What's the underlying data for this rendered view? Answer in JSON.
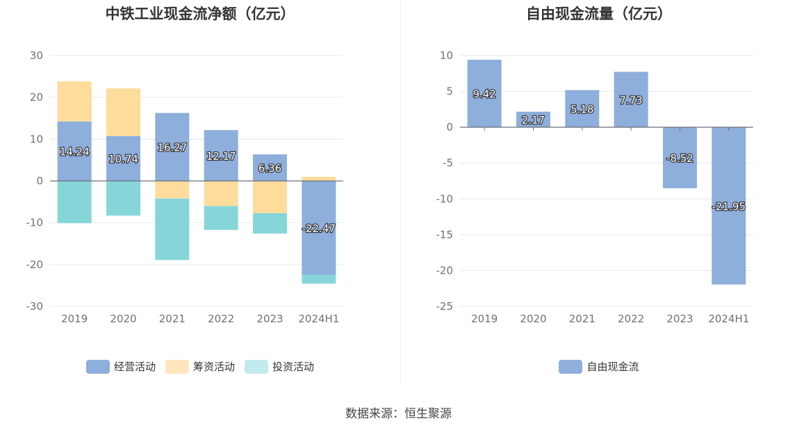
{
  "chart_data": [
    {
      "type": "bar",
      "stacked": true,
      "title": "中铁工业现金流净额（亿元）",
      "categories": [
        "2019",
        "2020",
        "2021",
        "2022",
        "2023",
        "2024H1"
      ],
      "ylim": [
        -30,
        30
      ],
      "yticks": [
        -30,
        -20,
        -10,
        0,
        10,
        20,
        30
      ],
      "grid": true,
      "legend_position": "bottom",
      "series": [
        {
          "name": "经营活动",
          "values": [
            14.24,
            10.74,
            16.27,
            12.17,
            6.36,
            -22.47
          ],
          "color": "#8eaedc",
          "labels": [
            "14.24",
            "10.74",
            "16.27",
            "12.17",
            "6.36",
            "-22.47"
          ]
        },
        {
          "name": "筹资活动",
          "values": [
            9.6,
            11.4,
            -4.2,
            -6.0,
            -7.7,
            1.0
          ],
          "color": "#ffdc9c"
        },
        {
          "name": "投资活动",
          "values": [
            -10.1,
            -8.3,
            -14.7,
            -5.7,
            -4.9,
            -2.1
          ],
          "color": "#86d6d9"
        }
      ]
    },
    {
      "type": "bar",
      "title": "自由现金流量（亿元）",
      "categories": [
        "2019",
        "2020",
        "2021",
        "2022",
        "2023",
        "2024H1"
      ],
      "ylim": [
        -25,
        10
      ],
      "yticks": [
        -25,
        -20,
        -15,
        -10,
        -5,
        0,
        5,
        10
      ],
      "grid": true,
      "legend_position": "bottom",
      "series": [
        {
          "name": "自由现金流",
          "values": [
            9.42,
            2.17,
            5.18,
            7.73,
            -8.52,
            -21.95
          ],
          "color": "#8eaedc",
          "labels": [
            "9.42",
            "2.17",
            "5.18",
            "7.73",
            "-8.52",
            "-21.95"
          ]
        }
      ]
    }
  ],
  "footer": {
    "source": "数据来源：恒生聚源"
  },
  "colors": {
    "legend_invest": "#c1eaec",
    "legend_finance": "#ffe5bd"
  }
}
